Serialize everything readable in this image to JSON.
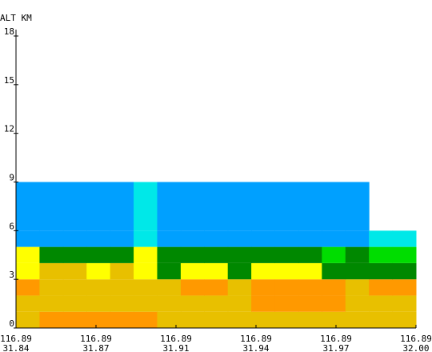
{
  "chart_data": {
    "type": "heatmap",
    "ylabel": "ALT KM",
    "ylim": [
      0,
      18
    ],
    "yticks": [
      0,
      3,
      6,
      9,
      12,
      15,
      18
    ],
    "xticks": [
      {
        "lon": "116.89",
        "lat": "31.84"
      },
      {
        "lon": "116.89",
        "lat": "31.87"
      },
      {
        "lon": "116.89",
        "lat": "31.91"
      },
      {
        "lon": "116.89",
        "lat": "31.94"
      },
      {
        "lon": "116.89",
        "lat": "31.97"
      },
      {
        "lon": "116.89",
        "lat": "32.00"
      }
    ],
    "n_columns": 17,
    "layer_altitudes_km": [
      1,
      2,
      3,
      4,
      5,
      6,
      9
    ],
    "colors": {
      "Y": "#e8c000",
      "O": "#ff9900",
      "G": "#008800",
      "L": "#00dd00",
      "W": "#ffff00",
      "B": "#00a0ff",
      "C": "#00e8e8"
    },
    "layers": [
      "YOOOOOYYYYYYYYYYY",
      "YYYYYYYYYYOOOOYYY",
      "OYYYYYYOOYOOOOYOO",
      "WYYWYWGWWGWWWGGGG",
      "WGGGGWGGGGGGGLGLL",
      "BBBBBCBBBBBBBBBCC",
      "BBBBBCBBBBBBBBB--"
    ]
  }
}
